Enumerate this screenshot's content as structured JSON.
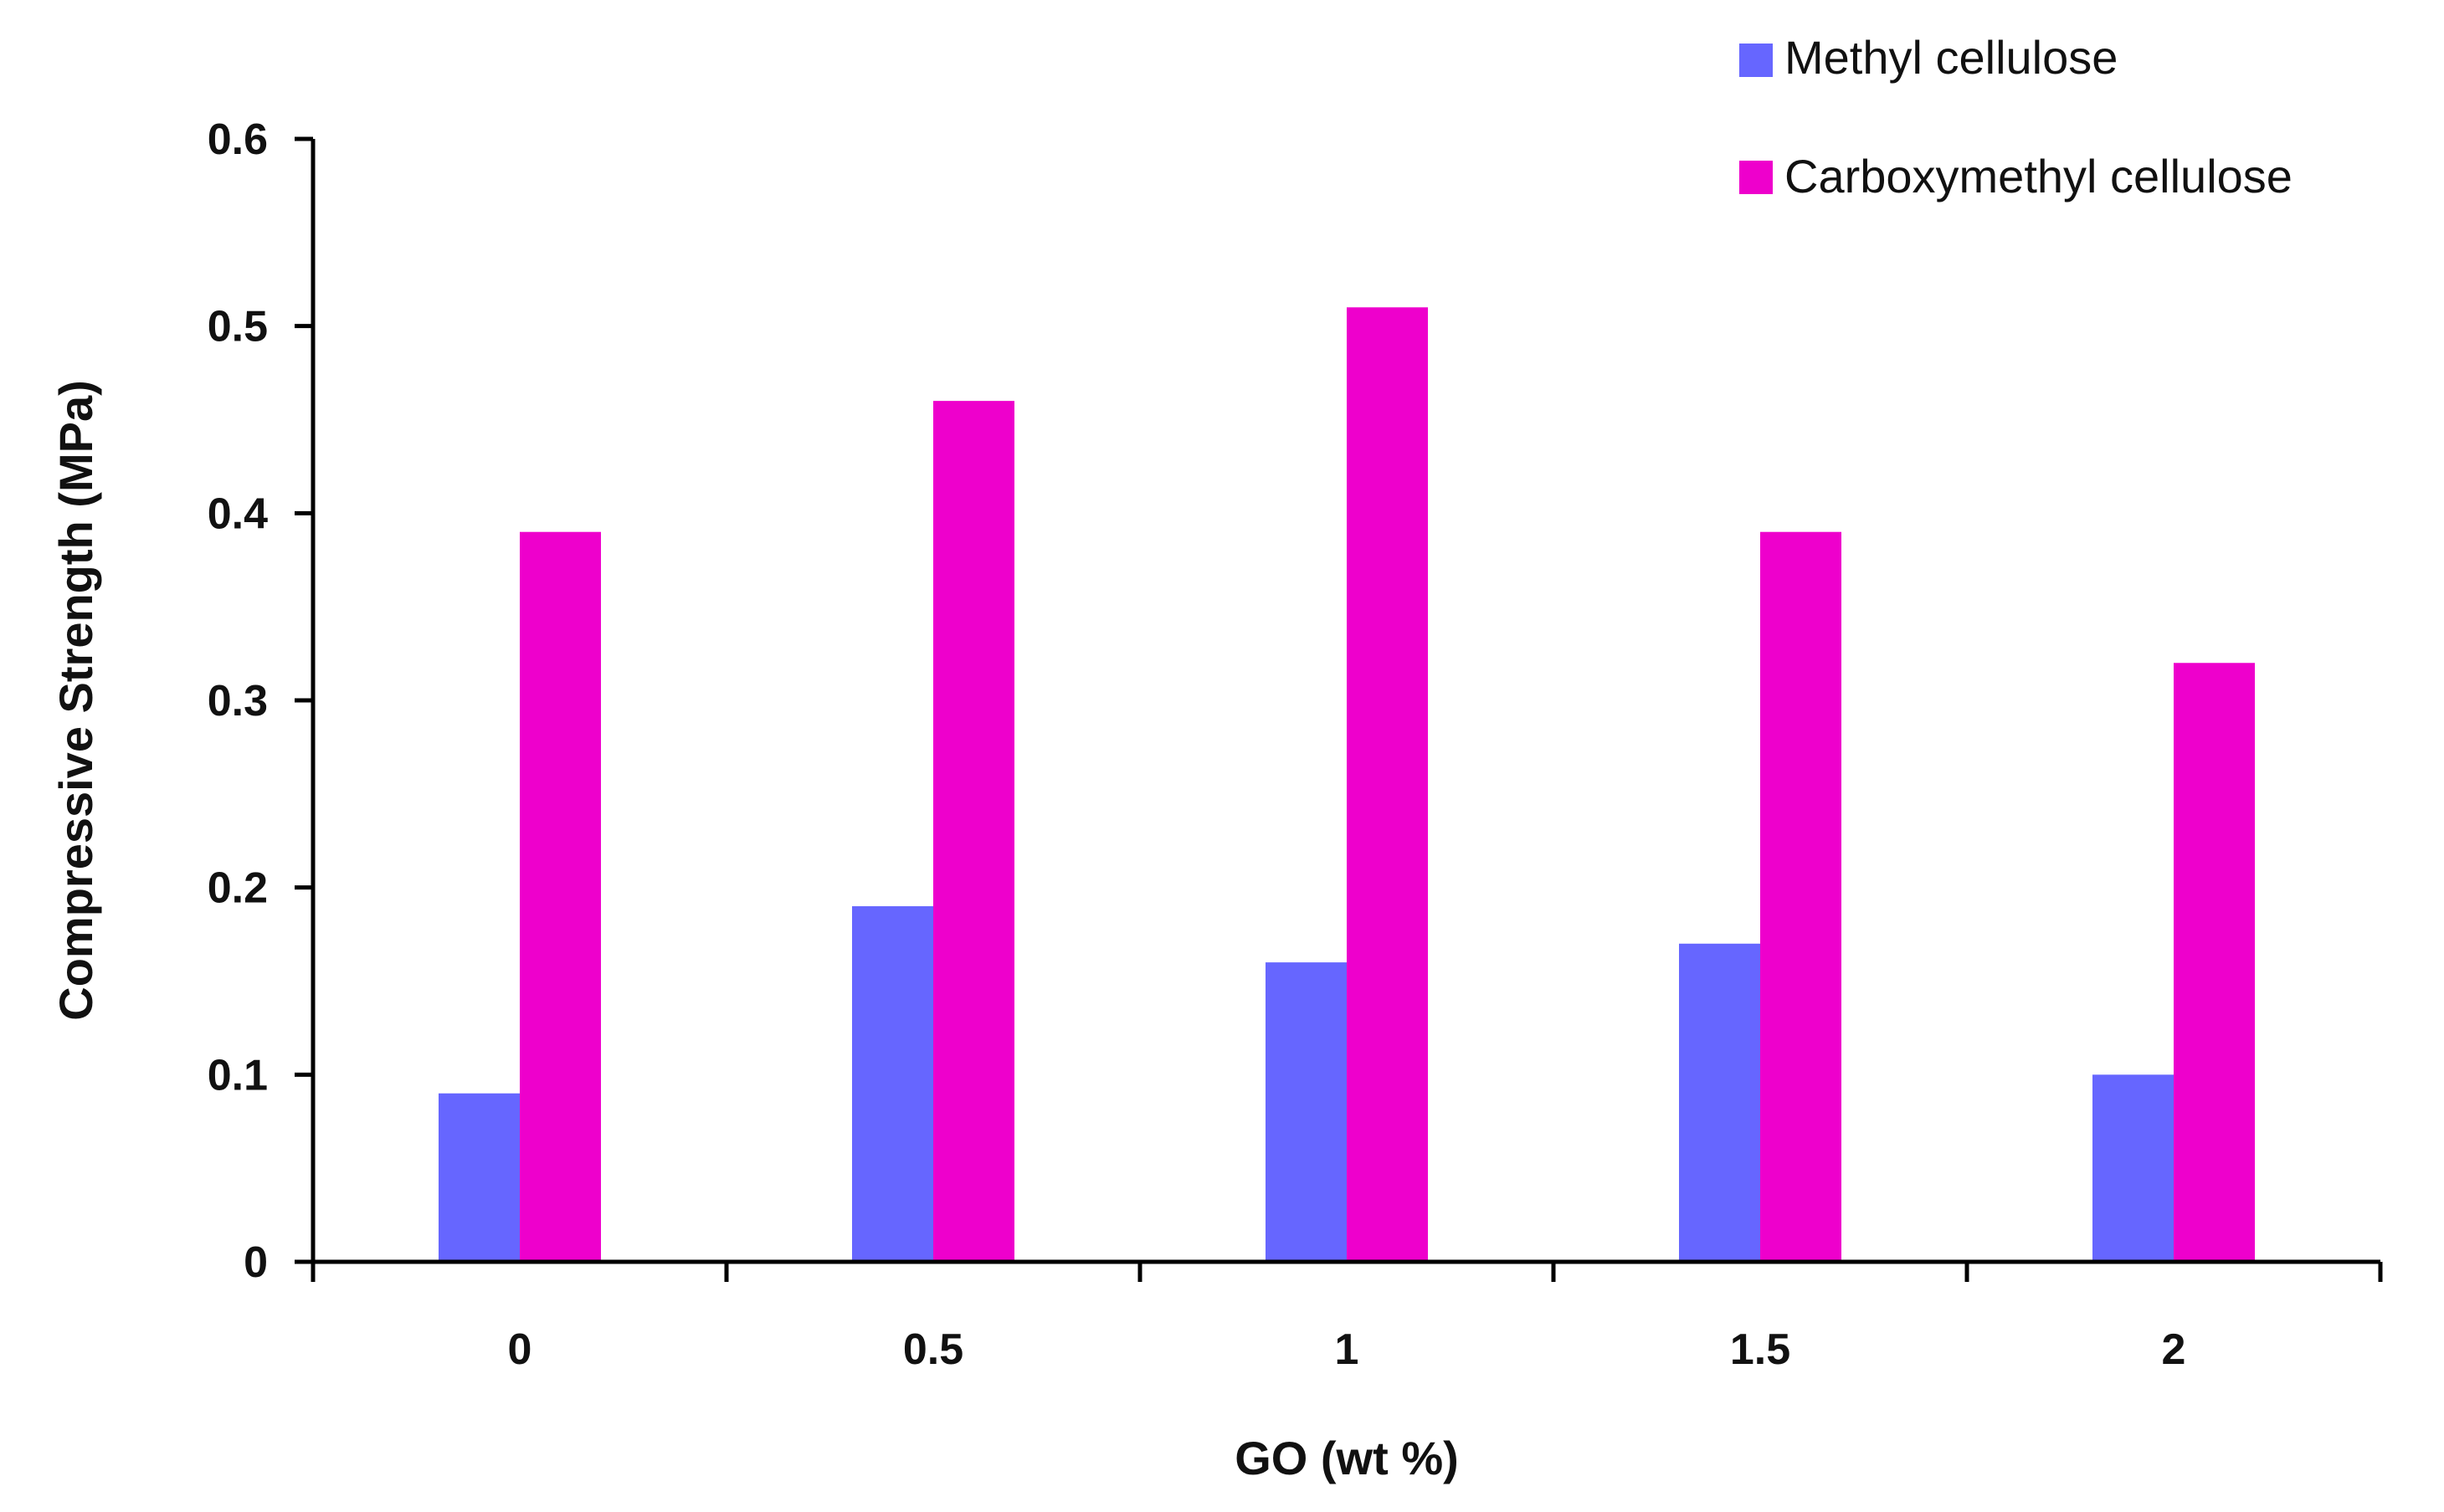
{
  "chart_data": {
    "type": "bar",
    "title": "",
    "xlabel": "GO (wt %)",
    "ylabel": "Compressive Strength (MPa)",
    "categories": [
      "0",
      "0.5",
      "1",
      "1.5",
      "2"
    ],
    "series": [
      {
        "name": "Methyl cellulose",
        "color": "#6666FF",
        "values": [
          0.09,
          0.19,
          0.16,
          0.17,
          0.1
        ]
      },
      {
        "name": "Carboxymethyl cellulose",
        "color": "#EE00CC",
        "values": [
          0.39,
          0.46,
          0.51,
          0.39,
          0.32
        ]
      }
    ],
    "ylim": [
      0,
      0.6
    ],
    "yticks": [
      "0",
      "0.1",
      "0.2",
      "0.3",
      "0.4",
      "0.5",
      "0.6"
    ],
    "ytick_values": [
      0,
      0.1,
      0.2,
      0.3,
      0.4,
      0.5,
      0.6
    ],
    "grid": false,
    "legend_position": "top-right"
  }
}
